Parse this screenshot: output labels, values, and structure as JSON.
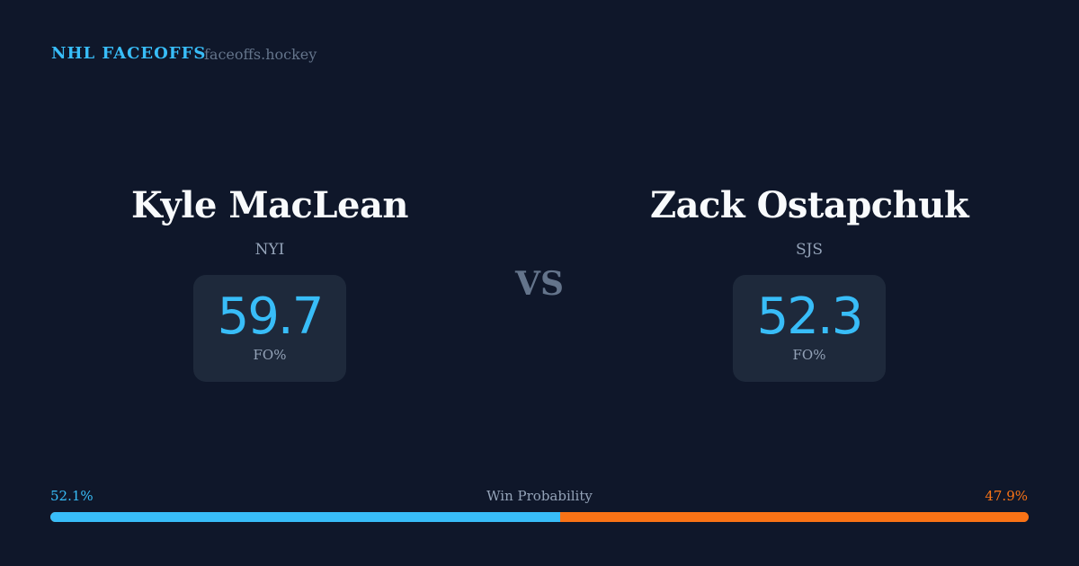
{
  "header": {
    "brand": "NHL FACEOFFS",
    "site": "faceoffs.hockey"
  },
  "players": [
    {
      "name": "Kyle MacLean",
      "team": "NYI",
      "value": "59.7",
      "label": "FO%"
    },
    {
      "name": "Zack Ostapchuk",
      "team": "SJS",
      "value": "52.3",
      "label": "FO%"
    }
  ],
  "vs": "VS",
  "win_probability": {
    "title": "Win Probability",
    "left_label": "52.1%",
    "right_label": "47.9%",
    "left_pct": 52.1,
    "right_pct": 47.9,
    "colors": {
      "left": "#38bdf8",
      "right": "#f97316"
    }
  }
}
